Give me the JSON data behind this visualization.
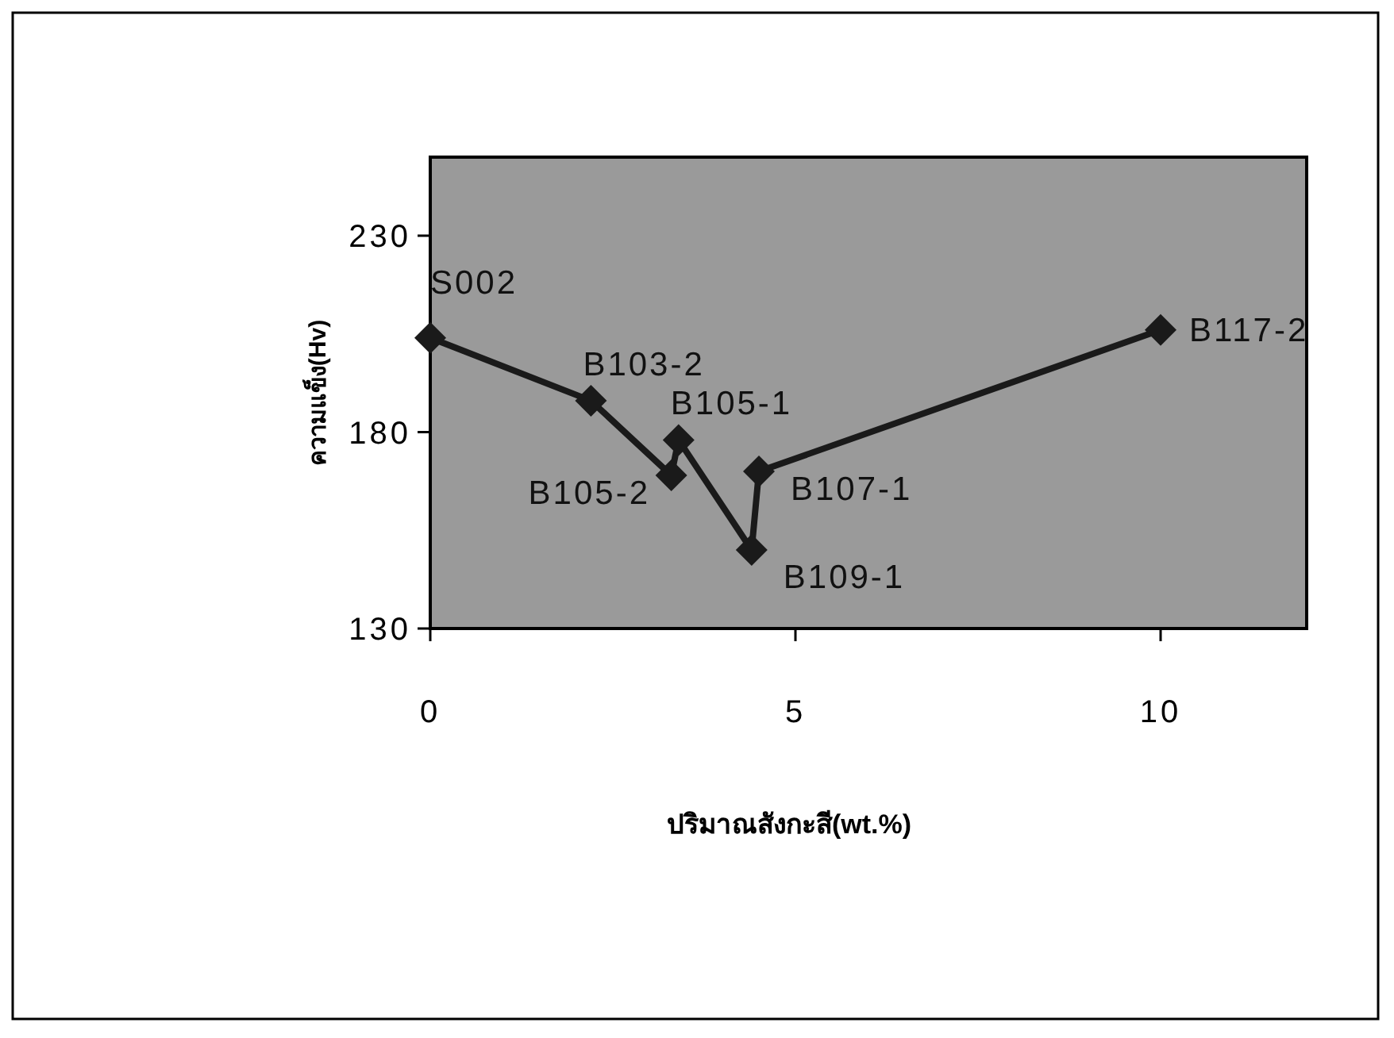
{
  "chart_data": {
    "type": "line",
    "xlabel": "ปริมาณสังกะสี(wt.%)",
    "ylabel": "ความแข็ง(Hv)",
    "xlim": [
      0,
      12
    ],
    "xticks": [
      0,
      5,
      10
    ],
    "ylim": [
      130,
      250
    ],
    "yticks": [
      130,
      180,
      230
    ],
    "grid": false,
    "marker": "diamond",
    "line_style": "solid",
    "series": [
      {
        "color": "#1a1a1a",
        "x": [
          0,
          2.2,
          3.3,
          3.4,
          4.4,
          4.5,
          10
        ],
        "values": [
          204,
          188,
          169,
          178,
          150,
          170,
          206
        ]
      }
    ],
    "annotations": [
      {
        "text": "S002",
        "x": 0,
        "y": 204
      },
      {
        "text": "B103-2",
        "x": 2.2,
        "y": 188
      },
      {
        "text": "B105-2",
        "x": 3.3,
        "y": 169
      },
      {
        "text": "B105-1",
        "x": 3.4,
        "y": 178
      },
      {
        "text": "B109-1",
        "x": 4.4,
        "y": 150
      },
      {
        "text": "B107-1",
        "x": 4.5,
        "y": 170
      },
      {
        "text": "B117-2",
        "x": 10,
        "y": 206
      }
    ]
  }
}
